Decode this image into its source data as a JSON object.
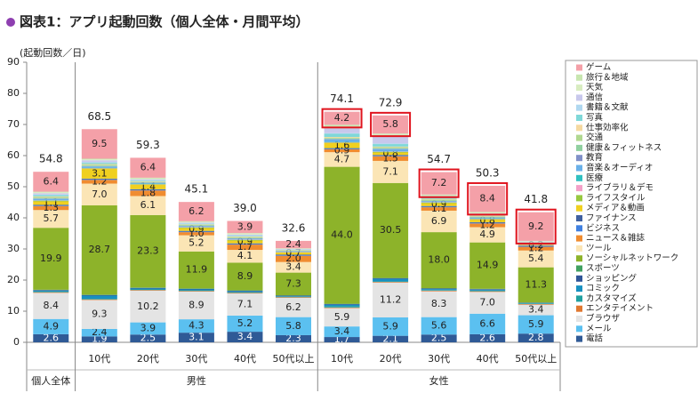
{
  "chart_data": {
    "type": "stacked_bar",
    "title": "図表1：アプリ起動回数（個人全体・月間平均）",
    "y_label": "(起動回数／日)",
    "categories": [
      null,
      "10代",
      "20代",
      "30代",
      "40代",
      "50代以上",
      "10代",
      "20代",
      "30代",
      "40代",
      "50代以上"
    ],
    "groups": [
      {
        "name": "個人全体",
        "size": 1
      },
      {
        "name": "男性",
        "size": 5
      },
      {
        "name": "女性",
        "size": 5
      }
    ],
    "ylim": [
      0,
      90
    ],
    "yticks": [
      0,
      10,
      20,
      30,
      40,
      50,
      60,
      70,
      80,
      90
    ],
    "totals": [
      54.8,
      68.5,
      59.3,
      45.1,
      39.0,
      32.6,
      74.1,
      72.9,
      54.7,
      50.3,
      41.8
    ],
    "total_labels": [
      "54.8",
      "68.5",
      "59.3",
      "45.1",
      "39.0",
      "32.6",
      "74.1",
      "72.9",
      "54.7",
      "50.3",
      "41.8"
    ],
    "series": [
      {
        "name": "電話",
        "color": "#2f5a96",
        "show_labels": true,
        "values": [
          2.6,
          1.9,
          2.5,
          3.1,
          3.4,
          2.3,
          1.7,
          2.1,
          2.5,
          2.6,
          2.8
        ]
      },
      {
        "name": "メール",
        "color": "#5bc0f0",
        "show_labels": true,
        "values": [
          4.9,
          2.4,
          3.9,
          4.3,
          5.2,
          5.8,
          3.4,
          5.9,
          5.6,
          6.6,
          5.9
        ]
      },
      {
        "name": "ブラウザ",
        "color": "#e4e4e4",
        "show_labels": true,
        "values": [
          8.4,
          9.3,
          10.2,
          8.9,
          7.1,
          6.2,
          5.9,
          11.2,
          8.3,
          7.0,
          3.4
        ],
        "value_labels": [
          "8.4",
          "9.3",
          "10.2",
          "8.9",
          "7.1",
          "6.2",
          "5.9",
          "11.2",
          "8.3",
          "7.0",
          "3.4"
        ]
      },
      {
        "name": "エンタテイメント",
        "color": "#e07830",
        "values": [
          0.2,
          0.2,
          0.2,
          0.2,
          0.2,
          0.2,
          0.2,
          0.2,
          0.2,
          0.2,
          0.2
        ]
      },
      {
        "name": "カスタマイズ",
        "color": "#20a0a0",
        "values": [
          0.2,
          0.2,
          0.2,
          0.2,
          0.2,
          0.2,
          0.4,
          0.2,
          0.2,
          0.2,
          0.2
        ]
      },
      {
        "name": "コミック",
        "color": "#1890c0",
        "values": [
          0.3,
          1.0,
          0.3,
          0.3,
          0.3,
          0.1,
          0.5,
          0.8,
          0.3,
          0.3,
          0.1
        ]
      },
      {
        "name": "ショッピング",
        "color": "#2f5597",
        "values": [
          0.2,
          0.2,
          0.2,
          0.2,
          0.2,
          0.2,
          0.2,
          0.2,
          0.2,
          0.2,
          0.1
        ]
      },
      {
        "name": "スポーツ",
        "color": "#40a060",
        "values": [
          0.1,
          0.1,
          0.1,
          0.1,
          0.1,
          0.1,
          0.1,
          0.1,
          0.1,
          0.1,
          0.1
        ]
      },
      {
        "name": "ソーシャルネットワーク",
        "color": "#8db32a",
        "show_labels": true,
        "values": [
          19.9,
          28.7,
          23.3,
          11.9,
          8.9,
          7.3,
          44.0,
          30.5,
          18.0,
          14.9,
          11.3
        ],
        "value_labels": [
          "19.9",
          "28.7",
          "23.3",
          "11.9",
          "8.9",
          "7.3",
          "44.0",
          "30.5",
          "18.0",
          "14.9",
          "11.3"
        ]
      },
      {
        "name": "ツール",
        "color": "#fbe5b5",
        "show_labels": true,
        "values": [
          5.7,
          7.0,
          6.1,
          5.2,
          4.1,
          3.4,
          4.7,
          7.1,
          6.9,
          4.9,
          5.4
        ],
        "value_labels": [
          "5.7",
          "7.0",
          "6.1",
          "5.2",
          "4.1",
          "3.4",
          "4.7",
          "7.1",
          "6.9",
          "4.9",
          "5.4"
        ]
      },
      {
        "name": "ニュース＆雑誌",
        "color": "#f08c30",
        "show_labels": true,
        "values": [
          1.3,
          1.2,
          1.8,
          1.0,
          1.7,
          2.0,
          0.9,
          1.5,
          1.1,
          1.2,
          1.2
        ],
        "value_labels": [
          "1.3",
          "1.2",
          "1.8",
          "1.0",
          "1.7",
          "2.0",
          "0.9",
          "1.5",
          "1.1",
          "1.2",
          "1.2"
        ]
      },
      {
        "name": "ビジネス",
        "color": "#4080e0",
        "values": [
          0.2,
          0.2,
          0.2,
          0.2,
          0.2,
          0.2,
          0.2,
          0.2,
          0.2,
          0.2,
          0.2
        ]
      },
      {
        "name": "ファイナンス",
        "color": "#4060a0",
        "values": [
          0.2,
          0.2,
          0.2,
          0.2,
          0.2,
          0.2,
          0.2,
          0.2,
          0.2,
          0.2,
          0.2
        ]
      },
      {
        "name": "メディア＆動画",
        "color": "#f0d020",
        "show_labels": true,
        "values": [
          1.1,
          3.1,
          1.4,
          0.9,
          0.9,
          0.7,
          1.6,
          0.8,
          0.9,
          0.8,
          0.2
        ]
      },
      {
        "name": "ライフスタイル",
        "color": "#98c840",
        "values": [
          0.2,
          0.2,
          0.2,
          0.2,
          0.2,
          0.0,
          0.2,
          0.2,
          0.2,
          0.2,
          0.0
        ]
      },
      {
        "name": "ライブラリ＆デモ",
        "color": "#f4a0c8",
        "values": [
          0.1,
          0.1,
          0.1,
          0.1,
          0.1,
          0.1,
          0.1,
          0.1,
          0.1,
          0.1,
          0.1
        ]
      },
      {
        "name": "医療",
        "color": "#30c0c0",
        "values": [
          0.1,
          0.1,
          0.1,
          0.1,
          0.1,
          0.1,
          0.1,
          0.1,
          0.1,
          0.1,
          0.1
        ]
      },
      {
        "name": "音楽＆オーディオ",
        "color": "#6ab0e8",
        "values": [
          0.4,
          0.4,
          0.2,
          0.2,
          0.2,
          0.1,
          0.8,
          0.7,
          0.2,
          0.2,
          0.1
        ]
      },
      {
        "name": "教育",
        "color": "#8090c8",
        "values": [
          0.1,
          0.1,
          0.1,
          0.1,
          0.1,
          0.1,
          0.1,
          0.1,
          0.1,
          0.1,
          0.1
        ]
      },
      {
        "name": "健康＆フィットネス",
        "color": "#90d0a0",
        "values": [
          0.2,
          0.2,
          0.2,
          0.2,
          0.2,
          0.2,
          0.2,
          0.2,
          0.2,
          0.2,
          0.2
        ]
      },
      {
        "name": "交通",
        "color": "#b0d890",
        "values": [
          0.3,
          0.3,
          0.1,
          0.1,
          0.2,
          0.1,
          0.3,
          0.3,
          0.3,
          0.2,
          0.1
        ]
      },
      {
        "name": "仕事効率化",
        "color": "#f5d9a0",
        "values": [
          0.2,
          0.2,
          0.2,
          0.2,
          0.2,
          0.1,
          0.2,
          0.2,
          0.2,
          0.2,
          0.1
        ]
      },
      {
        "name": "写真",
        "color": "#7fd8d8",
        "values": [
          0.4,
          0.4,
          0.2,
          0.2,
          0.2,
          0.1,
          1.0,
          0.8,
          0.4,
          0.2,
          0.1
        ]
      },
      {
        "name": "書籍＆文献",
        "color": "#b0d8f0",
        "values": [
          0.2,
          0.2,
          0.2,
          0.2,
          0.2,
          0.1,
          0.2,
          0.2,
          0.2,
          0.2,
          0.1
        ]
      },
      {
        "name": "通信",
        "color": "#c8c8ec",
        "values": [
          0.4,
          0.6,
          0.2,
          0.2,
          0.2,
          0.1,
          1.6,
          2.4,
          0.3,
          0.3,
          0.1
        ]
      },
      {
        "name": "天気",
        "color": "#d8ecc0",
        "values": [
          0.3,
          0.3,
          0.3,
          0.2,
          0.3,
          0.1,
          0.6,
          0.6,
          0.3,
          0.3,
          0.1
        ]
      },
      {
        "name": "旅行＆地域",
        "color": "#c8e6b0",
        "values": [
          0.2,
          0.2,
          0.2,
          0.2,
          0.2,
          0.1,
          0.5,
          0.2,
          0.2,
          0.2,
          0.1
        ]
      },
      {
        "name": "ゲーム",
        "color": "#f4a0a8",
        "show_labels": true,
        "values": [
          6.4,
          9.5,
          6.4,
          6.2,
          3.9,
          2.4,
          4.2,
          5.8,
          7.2,
          8.4,
          9.2
        ],
        "highlight": [
          false,
          false,
          false,
          false,
          false,
          false,
          true,
          true,
          true,
          true,
          true
        ]
      }
    ]
  }
}
